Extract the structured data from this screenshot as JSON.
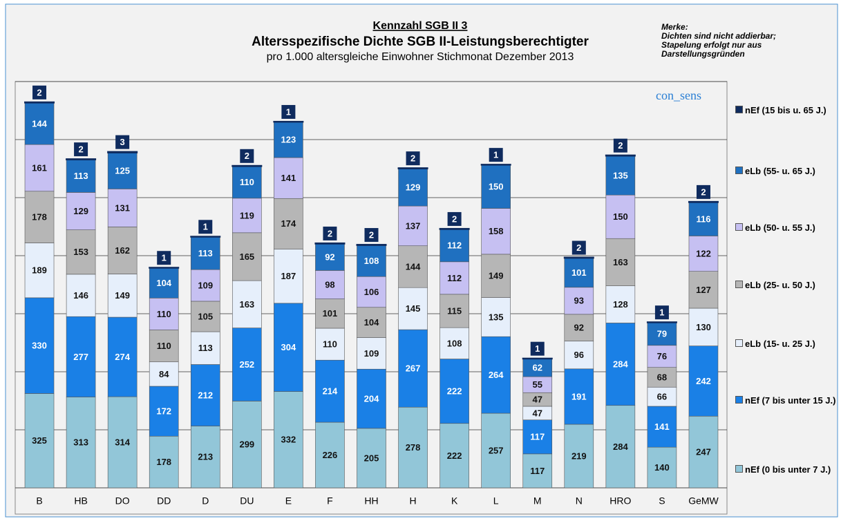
{
  "chart_data": {
    "type": "stacked_bar",
    "title": "Kennzahl SGB II 3",
    "heading": "Altersspezifische Dichte SGB II-Leistungsberechtigter",
    "subtitle": "pro 1.000 altersgleiche Einwohner Stichmonat Dezember 2013",
    "note": [
      "Merke:",
      "Dichten sind nicht addierbar;",
      "Stapelung erfolgt nur aus",
      "Darstellungsgründen"
    ],
    "watermark": "con_sens",
    "categories": [
      "B",
      "HB",
      "DO",
      "DD",
      "D",
      "DU",
      "E",
      "F",
      "HH",
      "H",
      "K",
      "L",
      "M",
      "N",
      "HRO",
      "S",
      "GeMW"
    ],
    "series": [
      {
        "name": "nEf (0 bis unter 7 J.)",
        "color": "#92c6d8",
        "values": [
          325,
          313,
          314,
          178,
          213,
          299,
          332,
          226,
          205,
          278,
          222,
          257,
          117,
          219,
          284,
          140,
          247
        ]
      },
      {
        "name": "nEf (7 bis unter 15 J.)",
        "color": "#1a80e6",
        "values": [
          330,
          277,
          274,
          172,
          212,
          252,
          304,
          214,
          204,
          267,
          222,
          264,
          117,
          191,
          284,
          141,
          242
        ]
      },
      {
        "name": "eLb (15- u. 25 J.)",
        "color": "#e6effb",
        "values": [
          189,
          146,
          149,
          84,
          113,
          163,
          187,
          110,
          109,
          145,
          108,
          135,
          47,
          96,
          128,
          66,
          130
        ]
      },
      {
        "name": "eLb (25- u. 50 J.)",
        "color": "#b6b6b6",
        "values": [
          178,
          153,
          162,
          110,
          105,
          165,
          174,
          101,
          104,
          144,
          115,
          149,
          47,
          92,
          163,
          68,
          127
        ]
      },
      {
        "name": "eLb (50- u. 55 J.)",
        "color": "#c6c0f2",
        "values": [
          161,
          129,
          131,
          110,
          109,
          119,
          141,
          98,
          106,
          137,
          112,
          158,
          55,
          93,
          150,
          76,
          122
        ]
      },
      {
        "name": "eLb (55- u. 65 J.)",
        "color": "#1f70c0",
        "values": [
          144,
          113,
          125,
          104,
          113,
          110,
          123,
          92,
          108,
          129,
          112,
          150,
          62,
          101,
          135,
          79,
          116
        ]
      },
      {
        "name": "nEf (15 bis u. 65 J.)",
        "color": "#0f2b5e",
        "values": [
          2,
          2,
          3,
          1,
          1,
          2,
          1,
          2,
          2,
          2,
          2,
          1,
          1,
          2,
          2,
          1,
          2
        ]
      }
    ],
    "ylim": [
      0,
      1400
    ],
    "yticks": [
      0,
      200,
      400,
      600,
      800,
      1000,
      1200,
      1400
    ],
    "grid": true
  }
}
